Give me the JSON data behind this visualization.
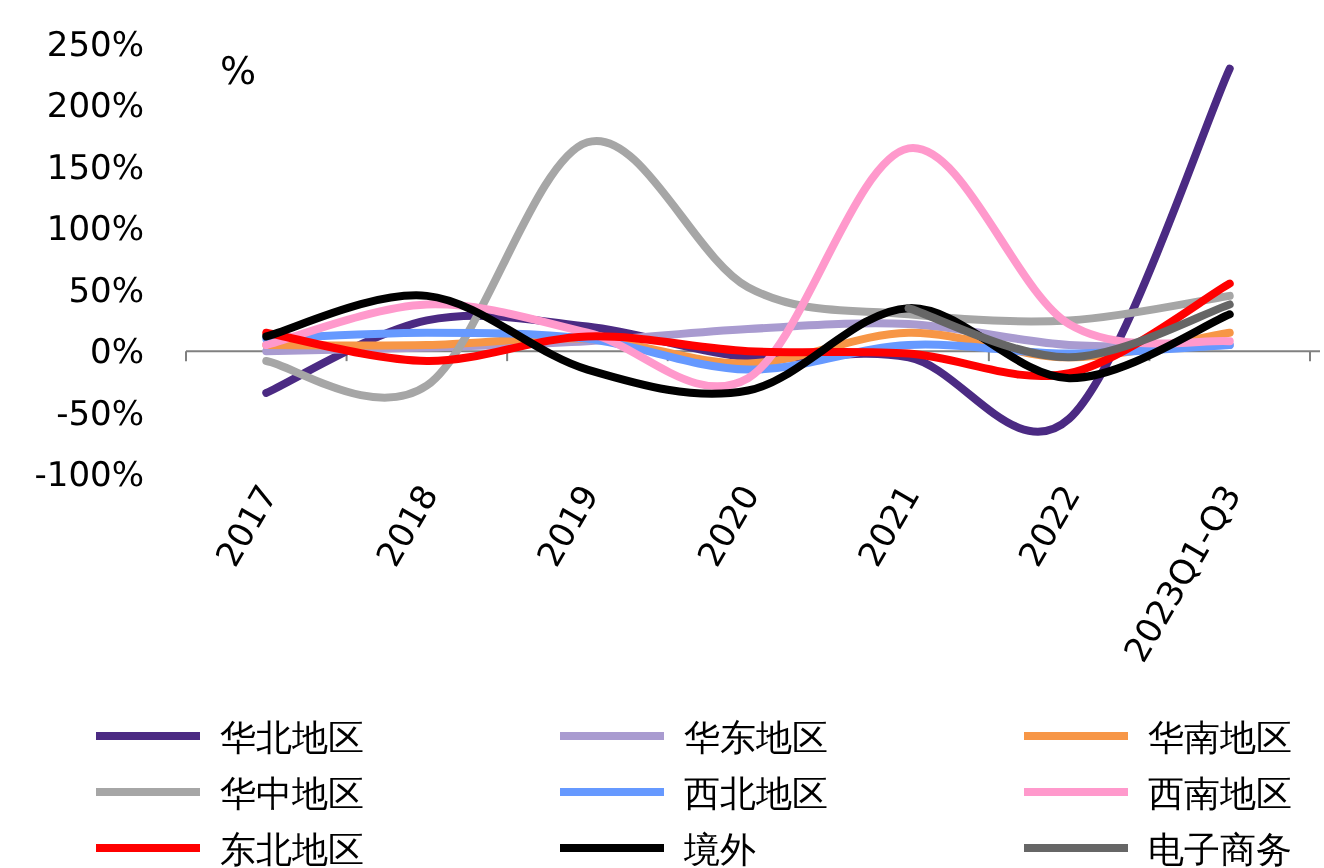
{
  "chart_data": {
    "type": "line",
    "ylabel": "%",
    "categories": [
      "2017",
      "2018",
      "2019",
      "2020",
      "2021",
      "2022",
      "2023Q1-Q3"
    ],
    "ylim": [
      -100,
      250
    ],
    "yticks": [
      {
        "value": -100,
        "label": "-100%"
      },
      {
        "value": -50,
        "label": "-50%"
      },
      {
        "value": 0,
        "label": "0%"
      },
      {
        "value": 50,
        "label": "50%"
      },
      {
        "value": 100,
        "label": "100%"
      },
      {
        "value": 150,
        "label": "150%"
      },
      {
        "value": 200,
        "label": "200%"
      },
      {
        "value": 250,
        "label": "250%"
      }
    ],
    "legend": "bottom",
    "marker": "none",
    "series": [
      {
        "name": "华北地区",
        "color": "#4b2a83",
        "values": [
          -34,
          25,
          20,
          -5,
          -5,
          -55,
          230
        ]
      },
      {
        "name": "华东地区",
        "color": "#a99bd0",
        "values": [
          0,
          3,
          8,
          18,
          22,
          5,
          5
        ]
      },
      {
        "name": "华南地区",
        "color": "#f79646",
        "values": [
          5,
          5,
          10,
          -10,
          15,
          -5,
          15
        ]
      },
      {
        "name": "华中地区",
        "color": "#a6a6a6",
        "values": [
          -8,
          -28,
          170,
          52,
          30,
          25,
          45
        ]
      },
      {
        "name": "西北地区",
        "color": "#6699ff",
        "values": [
          10,
          15,
          10,
          -15,
          5,
          -2,
          5
        ]
      },
      {
        "name": "西南地区",
        "color": "#ff99cc",
        "values": [
          5,
          38,
          15,
          -22,
          165,
          22,
          8
        ]
      },
      {
        "name": "东北地区",
        "color": "#ff0000",
        "values": [
          15,
          -8,
          12,
          0,
          -2,
          -18,
          55
        ]
      },
      {
        "name": "境外",
        "color": "#000000",
        "values": [
          12,
          45,
          -15,
          -32,
          35,
          -22,
          30
        ]
      },
      {
        "name": "电子商务",
        "color": "#666666",
        "values": [
          null,
          null,
          null,
          null,
          35,
          -5,
          38
        ]
      }
    ]
  }
}
